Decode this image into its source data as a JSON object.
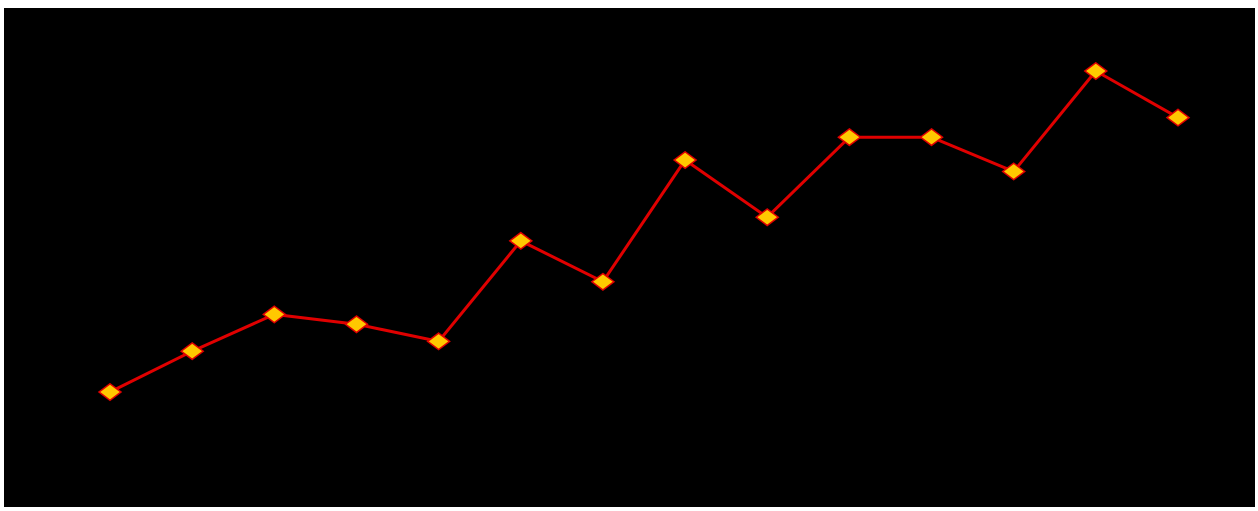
{
  "colors": {
    "background": "#000000",
    "page": "#ffffff",
    "line": "#e00000",
    "marker_fill": "#ffc800",
    "marker_stroke": "#e00000"
  },
  "chart_data": {
    "type": "line",
    "title": "",
    "xlabel": "",
    "ylabel": "",
    "grid": false,
    "legend": "none",
    "x": [
      1,
      2,
      3,
      4,
      5,
      6,
      7,
      8,
      9,
      10,
      11,
      12,
      13,
      14
    ],
    "series": [
      {
        "marker": "diamond",
        "values": [
          13,
          18,
          22.5,
          21.3,
          19.2,
          31.5,
          26.5,
          41.4,
          34.4,
          44.2,
          44.2,
          40,
          52.3,
          46.6
        ]
      }
    ],
    "xlim": [
      0,
      15
    ],
    "ylim": [
      0,
      60
    ]
  }
}
